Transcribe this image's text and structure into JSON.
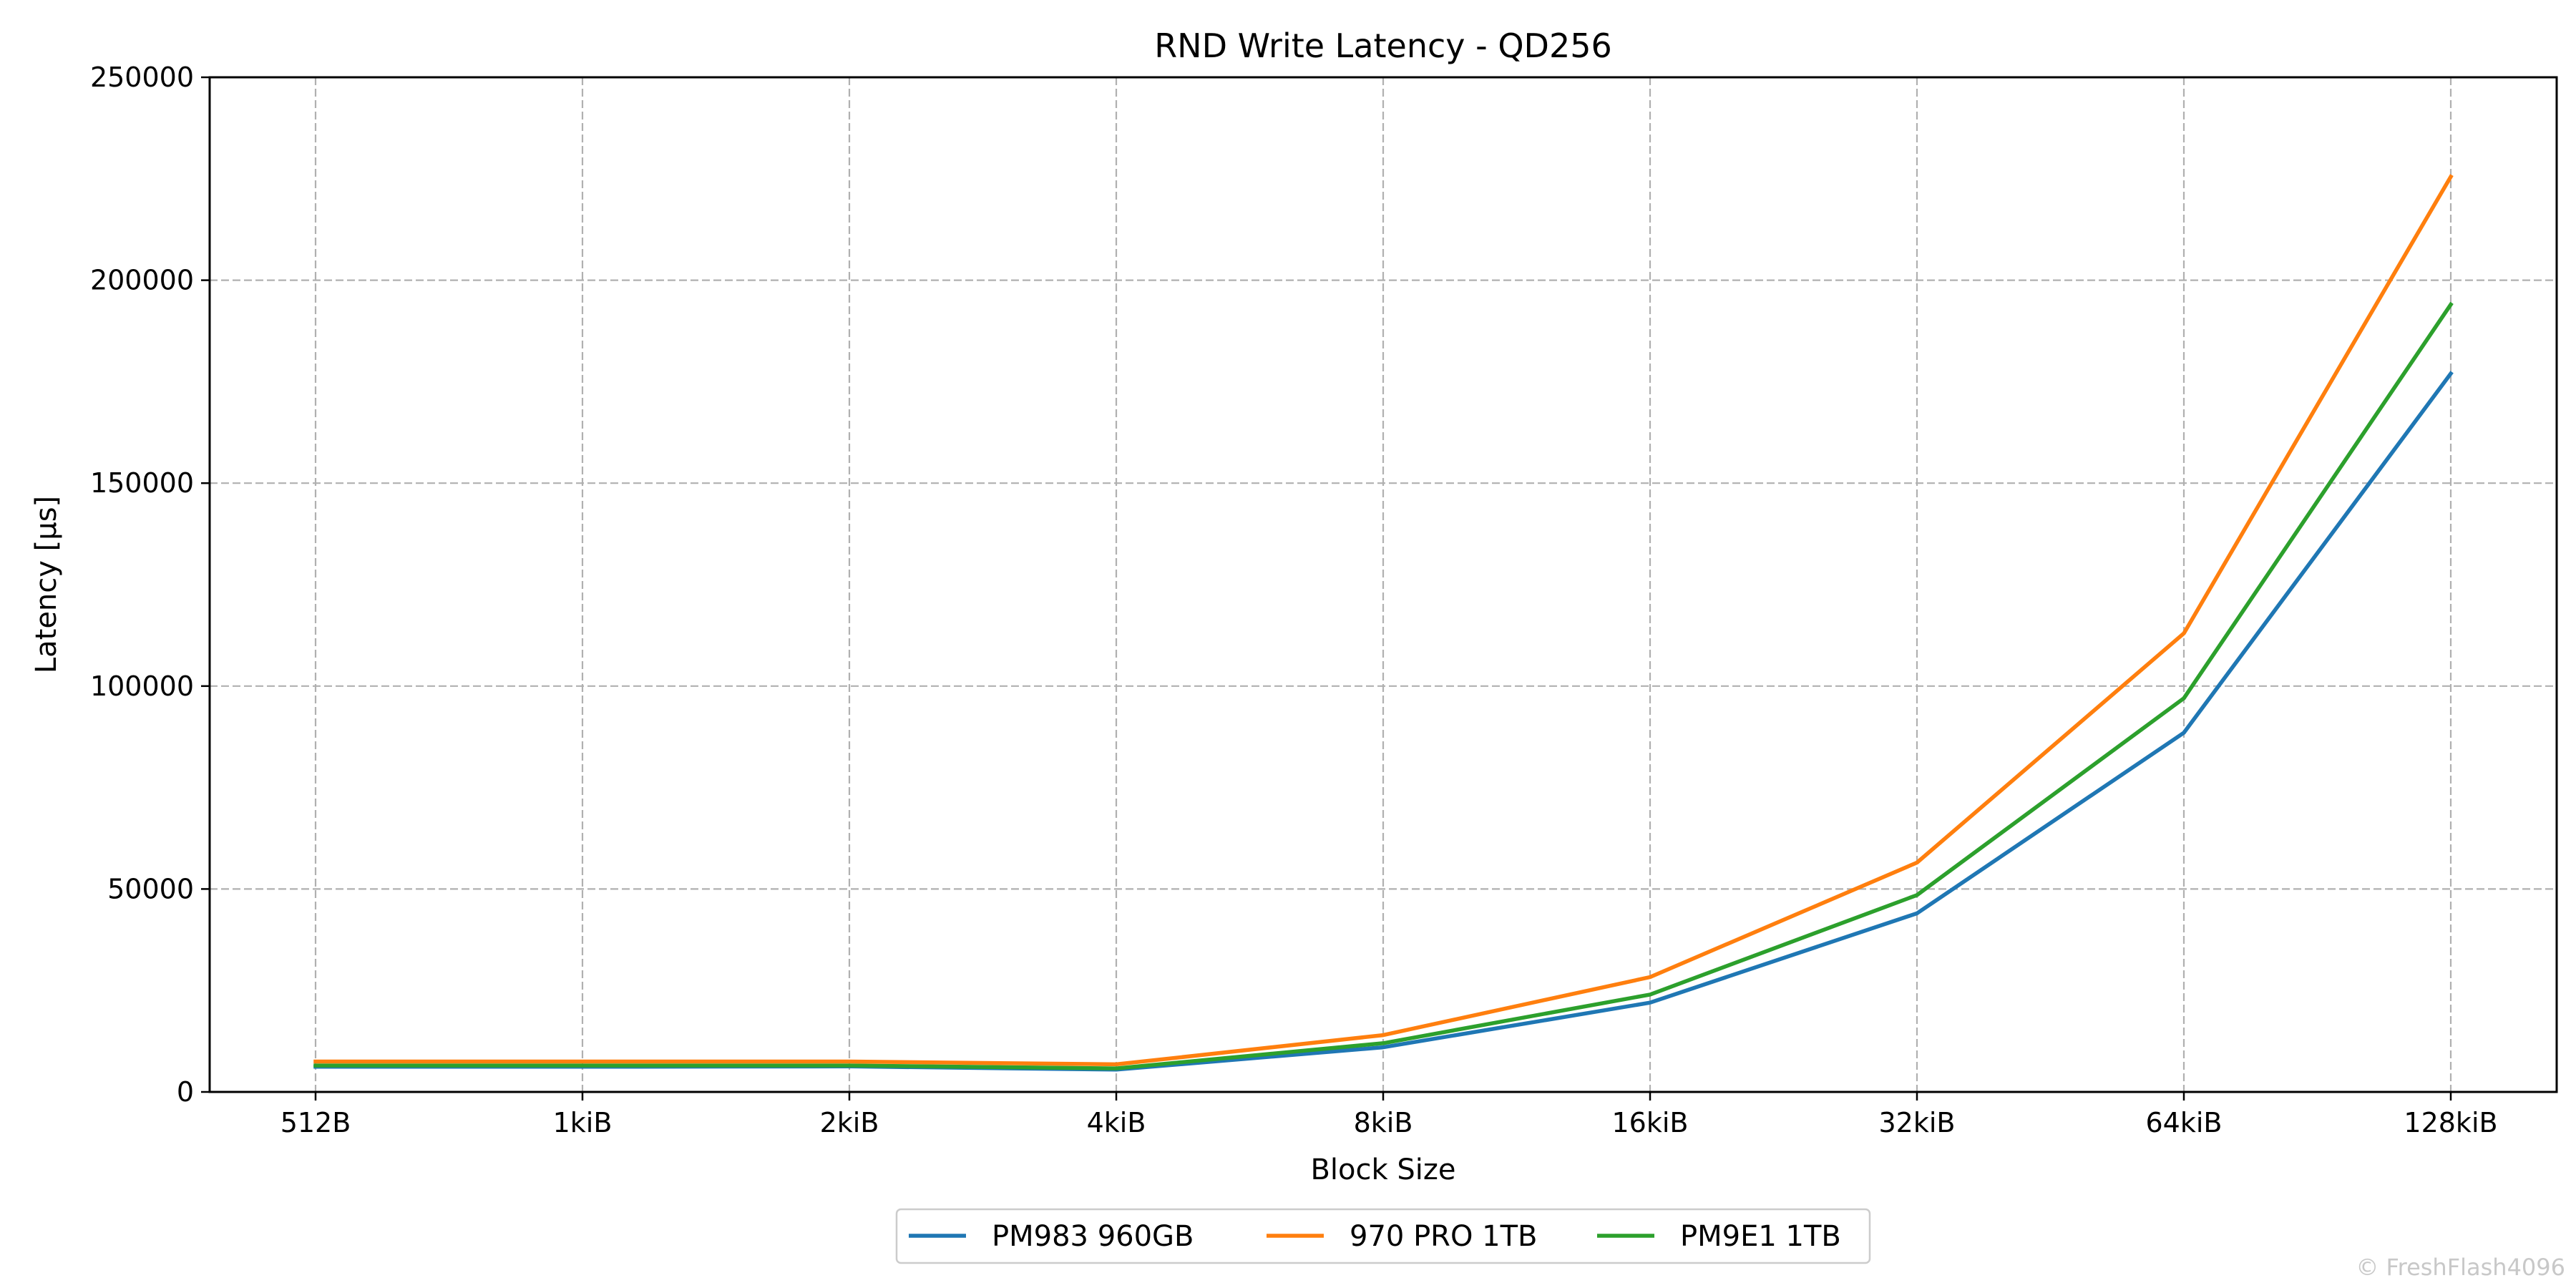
{
  "chart_data": {
    "type": "line",
    "title": "RND Write Latency - QD256",
    "xlabel": "Block Size",
    "ylabel": "Latency [µs]",
    "categories": [
      "512B",
      "1kiB",
      "2kiB",
      "4kiB",
      "8kiB",
      "16kiB",
      "32kiB",
      "64kiB",
      "128kiB"
    ],
    "ylim": [
      0,
      250000
    ],
    "yticks": [
      "0",
      "50000",
      "100000",
      "150000",
      "200000",
      "250000"
    ],
    "grid": true,
    "legend_position": "bottom-center",
    "series": [
      {
        "name": "PM983 960GB",
        "color": "#1f77b4",
        "values": [
          6200,
          6200,
          6300,
          5500,
          11000,
          22000,
          44000,
          88500,
          177000
        ]
      },
      {
        "name": "970 PRO 1TB",
        "color": "#ff7f0e",
        "values": [
          7500,
          7500,
          7500,
          6800,
          14000,
          28300,
          56500,
          113000,
          225500
        ]
      },
      {
        "name": "PM9E1 1TB",
        "color": "#2ca02c",
        "values": [
          6500,
          6500,
          6500,
          5800,
          12000,
          24000,
          48500,
          97000,
          194000
        ]
      }
    ]
  },
  "watermark": "© FreshFlash4096"
}
